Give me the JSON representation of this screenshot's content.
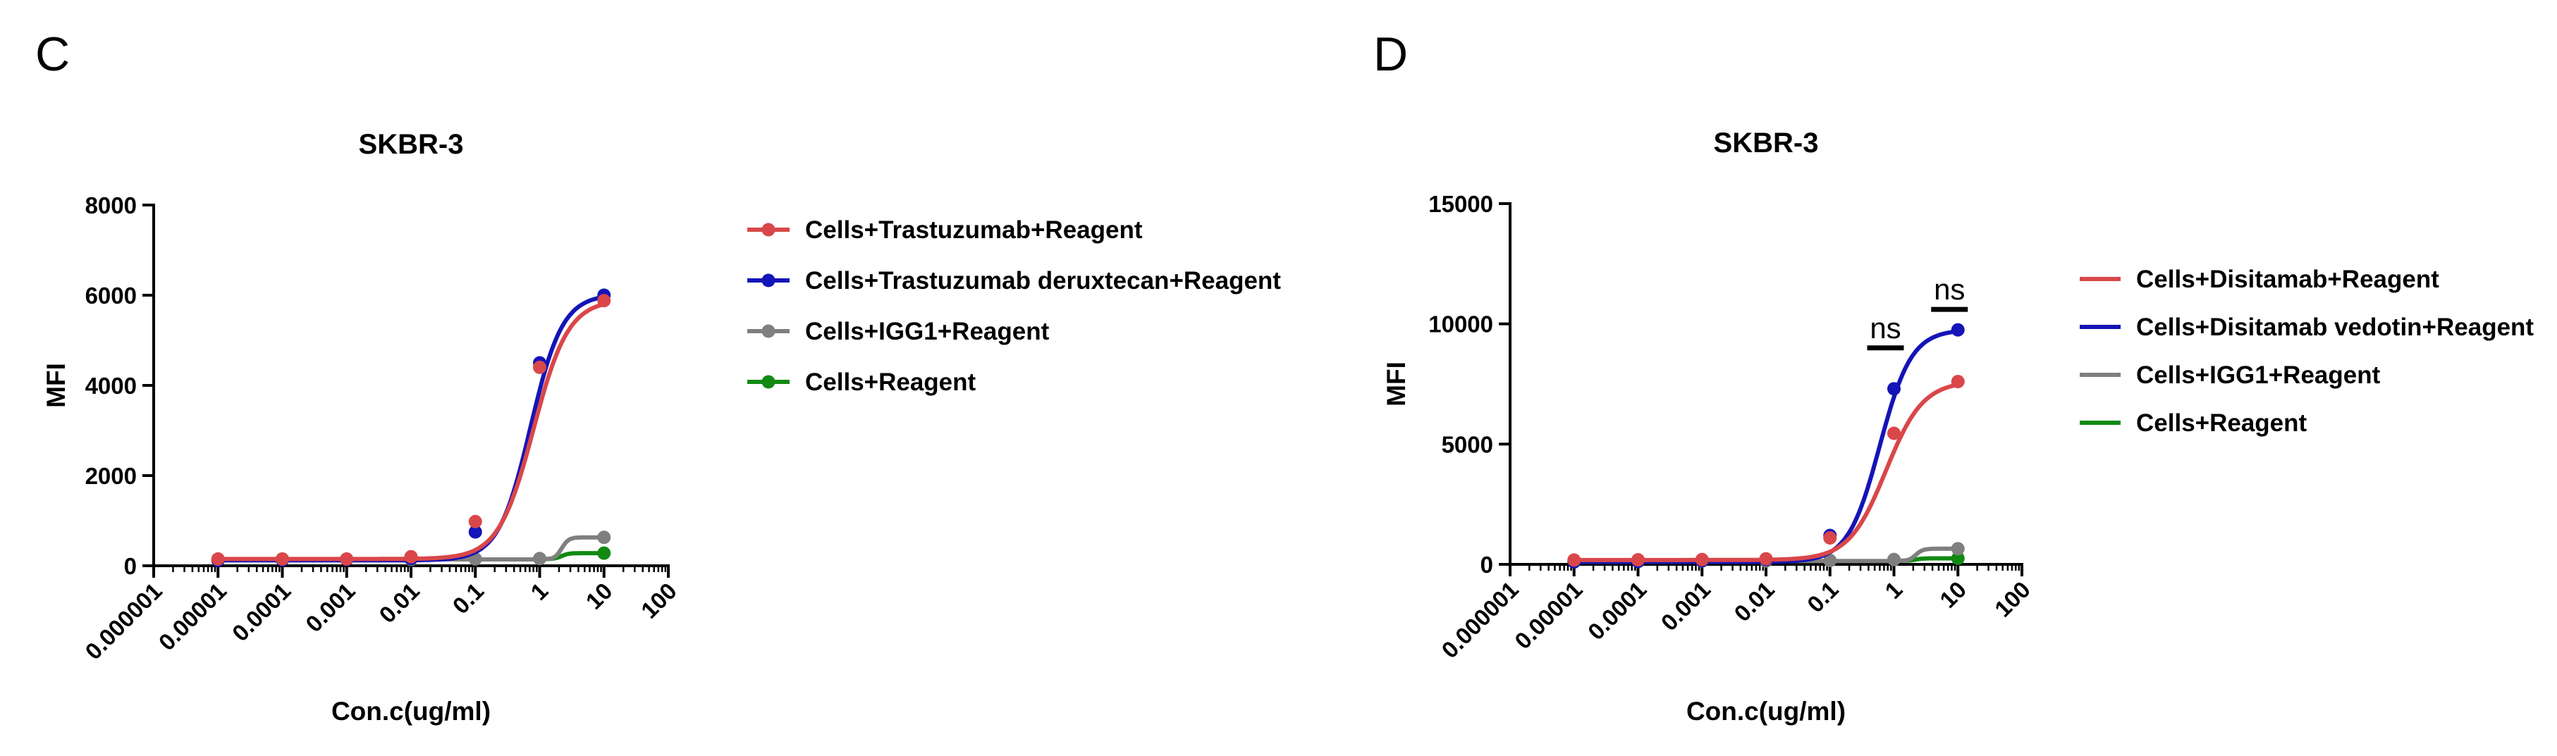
{
  "chart_data": [
    {
      "panel": "C",
      "type": "line",
      "title": "SKBR-3",
      "xlabel": "Con.c(ug/ml)",
      "ylabel": "MFI",
      "xscale": "log",
      "xlim": [
        1e-06,
        100
      ],
      "ylim": [
        0,
        8000
      ],
      "x_tick_labels": [
        "0.000001",
        "0.00001",
        "0.0001",
        "0.001",
        "0.01",
        "0.1",
        "1",
        "10",
        "100"
      ],
      "y_ticks": [
        0,
        2000,
        4000,
        6000,
        8000
      ],
      "y_tick_labels": [
        "0",
        "2000",
        "4000",
        "6000",
        "8000"
      ],
      "grid": false,
      "legend_position": "right",
      "legend_markers": true,
      "x": [
        1e-05,
        0.0001,
        0.001,
        0.01,
        0.1,
        1,
        10
      ],
      "series": [
        {
          "name": "Cells+Trastuzumab+Reagent",
          "color": "#d9474a",
          "values": [
            150,
            150,
            150,
            200,
            980,
            4400,
            5880
          ],
          "fit": {
            "bottom": 150,
            "top": 5900,
            "ec50": 0.8,
            "hill": 1.6
          }
        },
        {
          "name": "Cells+Trastuzumab deruxtecan+Reagent",
          "color": "#1414b8",
          "values": [
            120,
            130,
            140,
            160,
            750,
            4500,
            6000
          ],
          "fit": {
            "bottom": 120,
            "top": 6020,
            "ec50": 0.72,
            "hill": 1.75
          }
        },
        {
          "name": "Cells+IGG1+Reagent",
          "color": "#7f7f7f",
          "values": [
            130,
            140,
            145,
            140,
            150,
            160,
            630
          ],
          "fit": {
            "bottom": 140,
            "top": 630,
            "ec50": 2.2,
            "hill": 8
          }
        },
        {
          "name": "Cells+Reagent",
          "color": "#128a12",
          "values": [
            null,
            null,
            null,
            null,
            null,
            null,
            280
          ],
          "fit": {
            "bottom": 150,
            "top": 280,
            "ec50": 2.2,
            "hill": 8
          }
        }
      ],
      "annotations": []
    },
    {
      "panel": "D",
      "type": "line",
      "title": "SKBR-3",
      "xlabel": "Con.c(ug/ml)",
      "ylabel": "MFI",
      "xscale": "log",
      "xlim": [
        1e-06,
        100
      ],
      "ylim": [
        0,
        15000
      ],
      "x_tick_labels": [
        "0.000001",
        "0.00001",
        "0.0001",
        "0.001",
        "0.01",
        "0.1",
        "1",
        "10",
        "100"
      ],
      "y_ticks": [
        0,
        5000,
        10000,
        15000
      ],
      "y_tick_labels": [
        "0",
        "5000",
        "10000",
        "15000"
      ],
      "grid": false,
      "legend_position": "right",
      "legend_markers": false,
      "x": [
        1e-05,
        0.0001,
        0.001,
        0.01,
        0.1,
        1,
        10
      ],
      "series": [
        {
          "name": "Cells+Disitamab+Reagent",
          "color": "#d9474a",
          "values": [
            180,
            190,
            200,
            230,
            1100,
            5450,
            7600
          ],
          "fit": {
            "bottom": 180,
            "top": 7620,
            "ec50": 0.75,
            "hill": 1.5
          }
        },
        {
          "name": "Cells+Disitamab vedotin+Reagent",
          "color": "#1414b8",
          "values": [
            100,
            120,
            150,
            200,
            1200,
            7300,
            9750
          ],
          "fit": {
            "bottom": 100,
            "top": 9760,
            "ec50": 0.6,
            "hill": 1.75
          }
        },
        {
          "name": "Cells+IGG1+Reagent",
          "color": "#7f7f7f",
          "values": [
            120,
            130,
            140,
            140,
            160,
            200,
            650
          ],
          "fit": {
            "bottom": 140,
            "top": 650,
            "ec50": 2.2,
            "hill": 8
          }
        },
        {
          "name": "Cells+Reagent",
          "color": "#128a12",
          "values": [
            null,
            null,
            null,
            null,
            null,
            null,
            250
          ],
          "fit": {
            "bottom": 150,
            "top": 250,
            "ec50": 2.2,
            "hill": 8
          }
        }
      ],
      "annotations": [
        {
          "text": "ns",
          "x": 1,
          "y": 9000
        },
        {
          "text": "ns",
          "x": 10,
          "y": 10600
        }
      ]
    }
  ]
}
